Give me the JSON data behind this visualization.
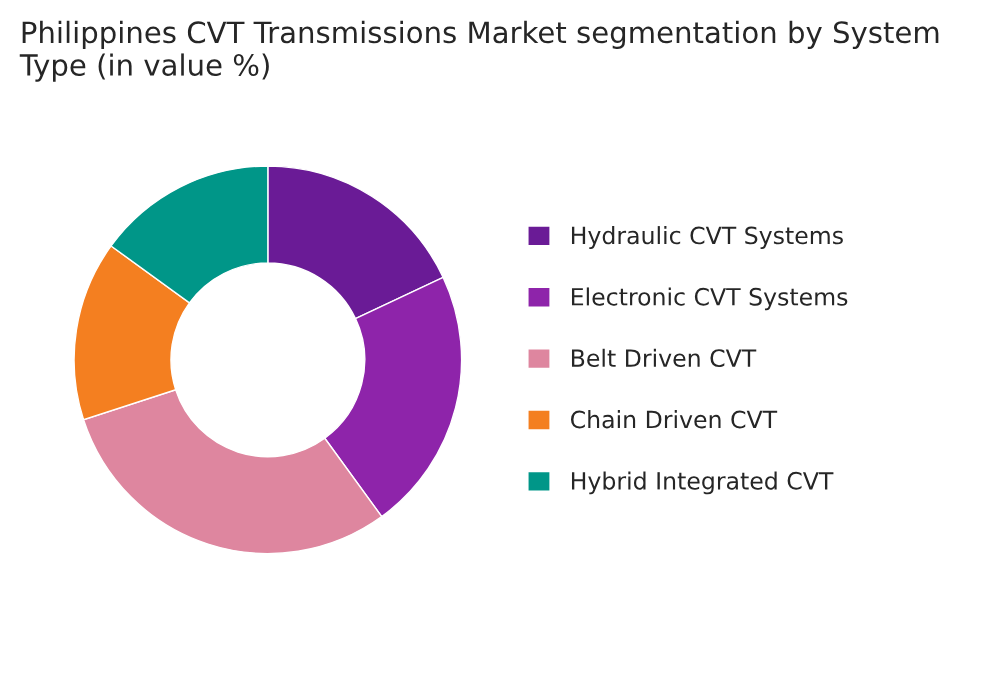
{
  "chart_data": {
    "type": "donut",
    "title": "Philippines CVT Transmissions Market segmentation by System Type (in value %)",
    "categories": [
      "Hydraulic CVT Systems",
      "Electronic CVT Systems",
      "Belt Driven CVT",
      "Chain Driven CVT",
      "Hybrid Integrated CVT"
    ],
    "values": [
      18,
      22,
      30,
      15,
      15
    ],
    "colors": [
      "#6a1b96",
      "#8e24aa",
      "#de869f",
      "#f47f20",
      "#009688"
    ],
    "legend": "right"
  }
}
